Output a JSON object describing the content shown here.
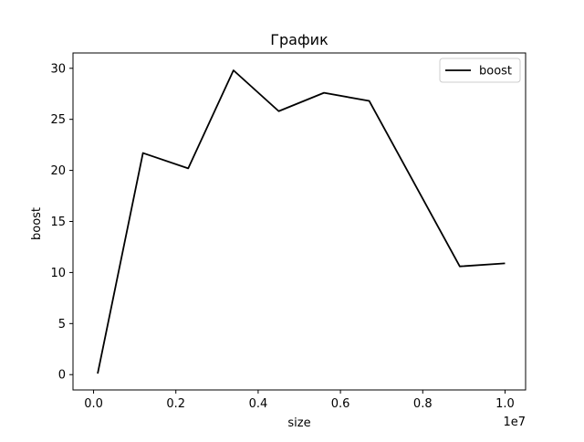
{
  "chart_data": {
    "type": "line",
    "title": "График",
    "xlabel": "size",
    "ylabel": "boost",
    "x_offset_label": "1e7",
    "x_scale": 10000000,
    "xlim": [
      -0.05,
      1.05
    ],
    "ylim": [
      -1.5,
      31.5
    ],
    "x_ticks": [
      0.0,
      0.2,
      0.4,
      0.6,
      0.8,
      1.0
    ],
    "x_tick_labels": [
      "0.0",
      "0.2",
      "0.4",
      "0.6",
      "0.8",
      "1.0"
    ],
    "y_ticks": [
      0,
      5,
      10,
      15,
      20,
      25,
      30
    ],
    "y_tick_labels": [
      "0",
      "5",
      "10",
      "15",
      "20",
      "25",
      "30"
    ],
    "grid": false,
    "legend_position": "top-right",
    "series": [
      {
        "name": "boost",
        "color": "#000000",
        "x": [
          100000,
          1200000,
          2300000,
          3400000,
          4500000,
          5600000,
          6700000,
          8900000,
          10000000
        ],
        "y": [
          0.1,
          21.7,
          20.2,
          29.8,
          25.8,
          27.6,
          26.8,
          10.6,
          10.9
        ]
      }
    ]
  }
}
